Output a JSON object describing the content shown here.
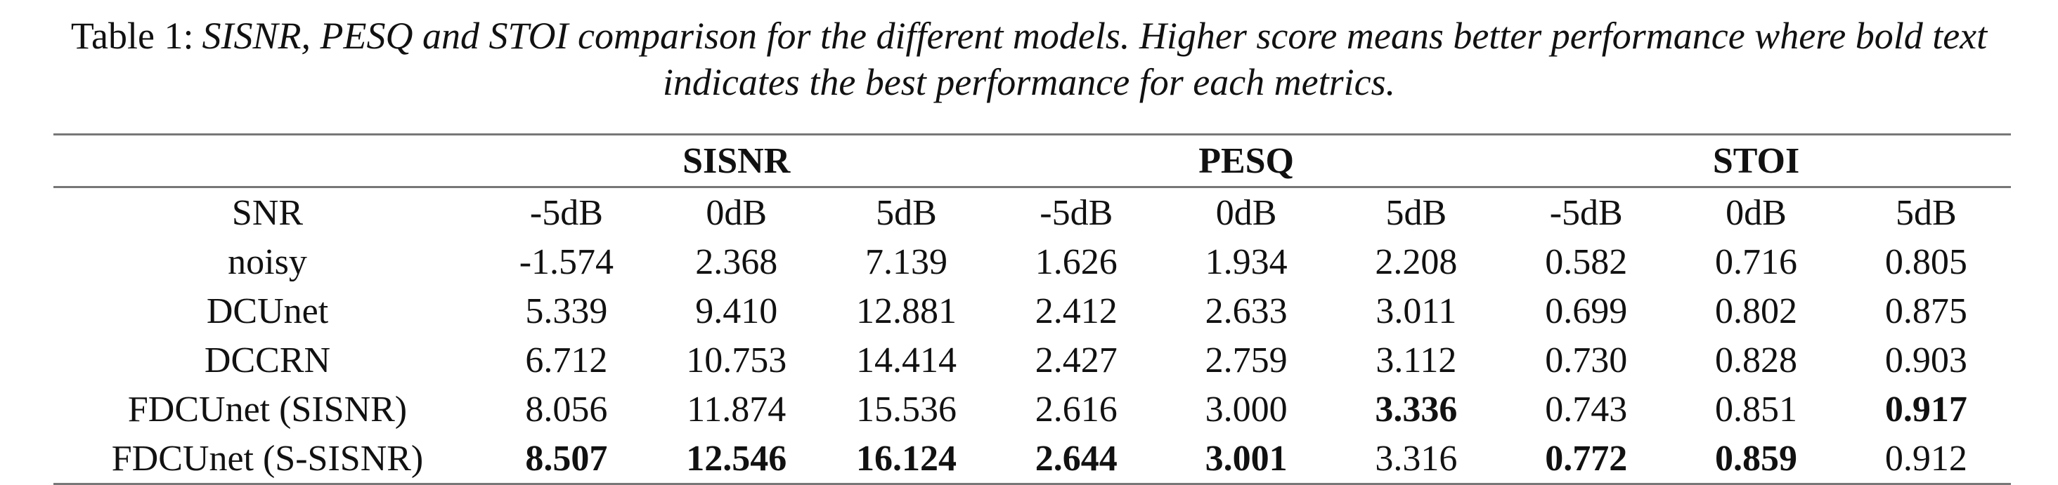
{
  "caption": {
    "label": "Table 1:",
    "text": "SISNR, PESQ and STOI comparison for the different models. Higher score means better performance where bold text indicates the best performance for each metrics."
  },
  "table": {
    "groups": [
      "SISNR",
      "PESQ",
      "STOI"
    ],
    "header": [
      "SNR",
      "-5dB",
      "0dB",
      "5dB",
      "-5dB",
      "0dB",
      "5dB",
      "-5dB",
      "0dB",
      "5dB"
    ],
    "rows": [
      [
        "noisy",
        "-1.574",
        "2.368",
        "7.139",
        "1.626",
        "1.934",
        "2.208",
        "0.582",
        "0.716",
        "0.805"
      ],
      [
        "DCUnet",
        "5.339",
        "9.410",
        "12.881",
        "2.412",
        "2.633",
        "3.011",
        "0.699",
        "0.802",
        "0.875"
      ],
      [
        "DCCRN",
        "6.712",
        "10.753",
        "14.414",
        "2.427",
        "2.759",
        "3.112",
        "0.730",
        "0.828",
        "0.903"
      ],
      [
        "FDCUnet (SISNR)",
        "8.056",
        "11.874",
        "15.536",
        "2.616",
        "3.000",
        {
          "text": "3.336",
          "bold": true
        },
        "0.743",
        "0.851",
        {
          "text": "0.917",
          "bold": true
        }
      ],
      [
        "FDCUnet (S-SISNR)",
        {
          "text": "8.507",
          "bold": true
        },
        {
          "text": "12.546",
          "bold": true
        },
        {
          "text": "16.124",
          "bold": true
        },
        {
          "text": "2.644",
          "bold": true
        },
        {
          "text": "3.001",
          "bold": true
        },
        "3.316",
        {
          "text": "0.772",
          "bold": true
        },
        {
          "text": "0.859",
          "bold": true
        },
        "0.912"
      ]
    ]
  }
}
